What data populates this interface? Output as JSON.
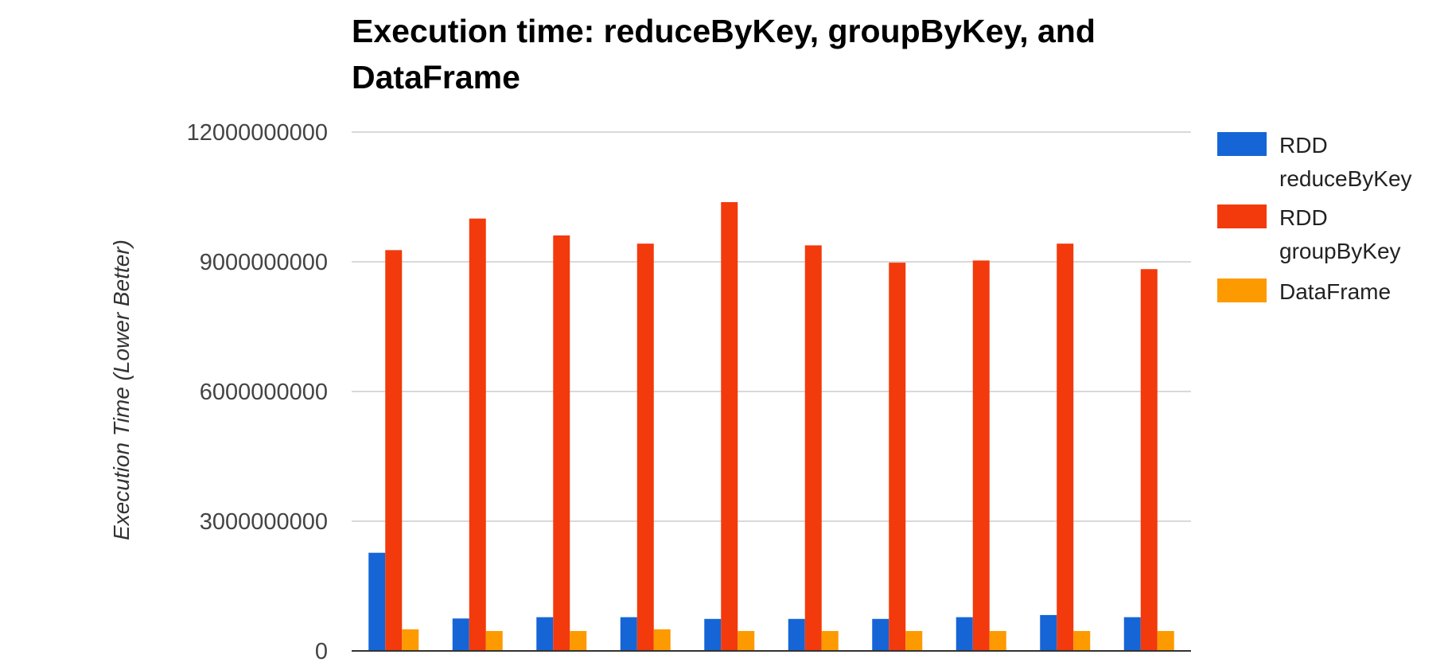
{
  "chart_data": {
    "type": "bar",
    "title": "Execution time: reduceByKey, groupByKey, and DataFrame",
    "ylabel": "Execution Time (Lower Better)",
    "xlabel": "",
    "ylim": [
      0,
      12000000000
    ],
    "yticks": [
      0,
      3000000000,
      6000000000,
      9000000000,
      12000000000
    ],
    "ytick_labels": [
      "0",
      "3000000000",
      "6000000000",
      "9000000000",
      "12000000000"
    ],
    "grid": true,
    "legend_position": "right",
    "categories": [
      "",
      "",
      "",
      "",
      "",
      "",
      "",
      "",
      "",
      ""
    ],
    "series": [
      {
        "name": "RDD reduceByKey",
        "legend_lines": [
          "RDD",
          "reduceByKey"
        ],
        "color": "#1565d6",
        "values": [
          2270000000,
          750000000,
          780000000,
          780000000,
          740000000,
          740000000,
          740000000,
          780000000,
          830000000,
          780000000
        ]
      },
      {
        "name": "RDD groupByKey",
        "legend_lines": [
          "RDD",
          "groupByKey"
        ],
        "color": "#f23a0c",
        "values": [
          9270000000,
          10000000000,
          9610000000,
          9420000000,
          10380000000,
          9380000000,
          8980000000,
          9030000000,
          9420000000,
          8830000000
        ]
      },
      {
        "name": "DataFrame",
        "legend_lines": [
          "DataFrame"
        ],
        "color": "#fd9a00",
        "values": [
          500000000,
          460000000,
          460000000,
          500000000,
          460000000,
          460000000,
          460000000,
          460000000,
          460000000,
          460000000
        ]
      }
    ]
  }
}
